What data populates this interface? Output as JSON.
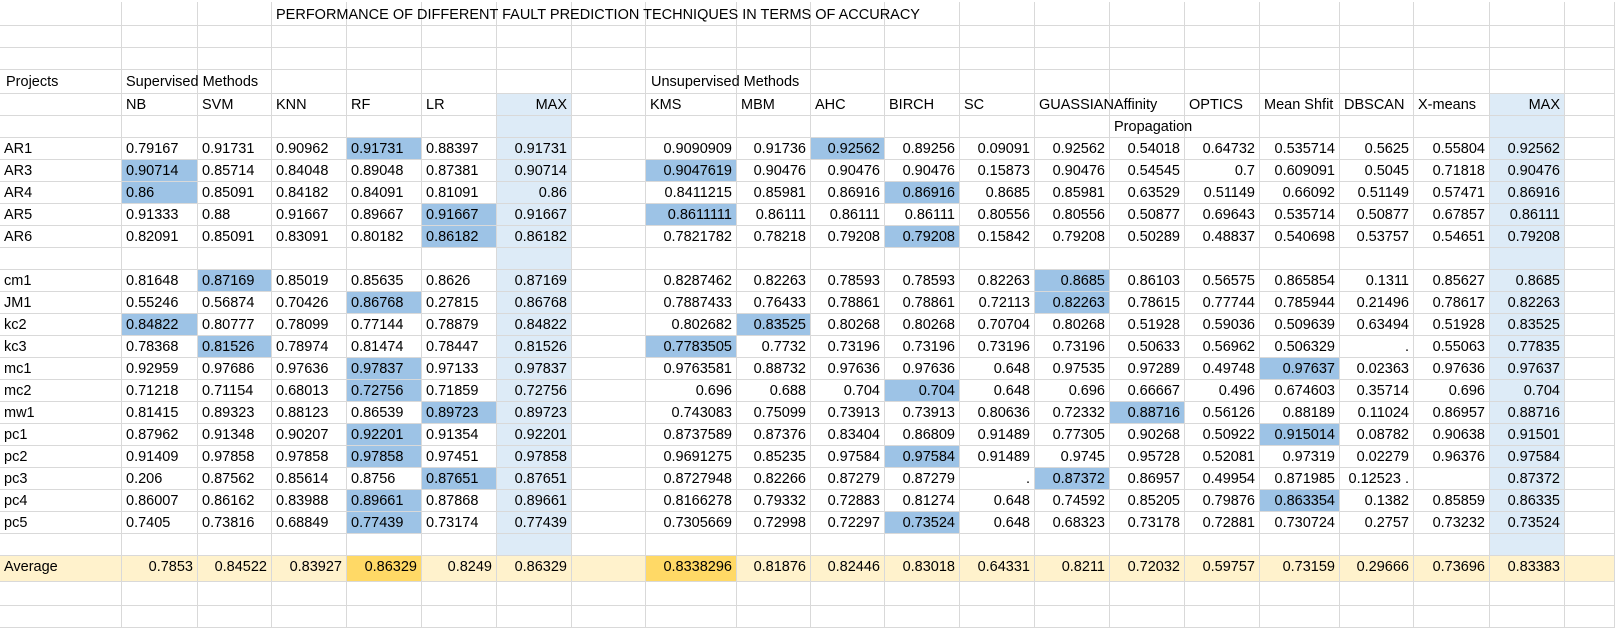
{
  "title": "PERFORMANCE OF DIFFERENT FAULT PREDICTION TECHNIQUES IN TERMS OF ACCURACY",
  "group_labels": {
    "projects": "Projects",
    "supervised": "Supervised Methods",
    "unsupervised": "Unsupervised Methods"
  },
  "columns": [
    "NB",
    "SVM",
    "KNN",
    "RF",
    "LR",
    "MAX",
    "KMS",
    "MBM",
    "AHC",
    "BIRCH",
    "SC",
    "GUASSIAN",
    "Affinity",
    "OPTICS",
    "Mean Shfit",
    "DBSCAN",
    "X-means",
    "MAX"
  ],
  "affinity_second_line": "Propagation",
  "rows": [
    {
      "project": "AR1",
      "values": [
        "0.79167",
        "0.91731",
        "0.90962",
        "0.91731",
        "0.88397",
        "0.91731",
        "0.9090909",
        "0.91736",
        "0.92562",
        "0.89256",
        "0.09091",
        "0.92562",
        "0.54018",
        "0.64732",
        "0.535714",
        "0.5625",
        "0.55804",
        "0.92562"
      ],
      "highlight": [
        3,
        8
      ]
    },
    {
      "project": "AR3",
      "values": [
        "0.90714",
        "0.85714",
        "0.84048",
        "0.89048",
        "0.87381",
        "0.90714",
        "0.9047619",
        "0.90476",
        "0.90476",
        "0.90476",
        "0.15873",
        "0.90476",
        "0.54545",
        "0.7",
        "0.609091",
        "0.5045",
        "0.71818",
        "0.90476"
      ],
      "highlight": [
        0,
        6
      ]
    },
    {
      "project": "AR4",
      "values": [
        "0.86",
        "0.85091",
        "0.84182",
        "0.84091",
        "0.81091",
        "0.86",
        "0.8411215",
        "0.85981",
        "0.86916",
        "0.86916",
        "0.8685",
        "0.85981",
        "0.63529",
        "0.51149",
        "0.66092",
        "0.51149",
        "0.57471",
        "0.86916"
      ],
      "highlight": [
        0,
        9
      ]
    },
    {
      "project": "AR5",
      "values": [
        "0.91333",
        "0.88",
        "0.91667",
        "0.89667",
        "0.91667",
        "0.91667",
        "0.8611111",
        "0.86111",
        "0.86111",
        "0.86111",
        "0.80556",
        "0.80556",
        "0.50877",
        "0.69643",
        "0.535714",
        "0.50877",
        "0.67857",
        "0.86111"
      ],
      "highlight": [
        4,
        6
      ]
    },
    {
      "project": "AR6",
      "values": [
        "0.82091",
        "0.85091",
        "0.83091",
        "0.80182",
        "0.86182",
        "0.86182",
        "0.7821782",
        "0.78218",
        "0.79208",
        "0.79208",
        "0.15842",
        "0.79208",
        "0.50289",
        "0.48837",
        "0.540698",
        "0.53757",
        "0.54651",
        "0.79208"
      ],
      "highlight": [
        4,
        9
      ]
    },
    {
      "project": "cm1",
      "values": [
        "0.81648",
        "0.87169",
        "0.85019",
        "0.85635",
        "0.8626",
        "0.87169",
        "0.8287462",
        "0.82263",
        "0.78593",
        "0.78593",
        "0.82263",
        "0.8685",
        "0.86103",
        "0.56575",
        "0.865854",
        "0.1311",
        "0.85627",
        "0.8685"
      ],
      "highlight": [
        1,
        11
      ]
    },
    {
      "project": "JM1",
      "values": [
        "0.55246",
        "0.56874",
        "0.70426",
        "0.86768",
        "0.27815",
        "0.86768",
        "0.7887433",
        "0.76433",
        "0.78861",
        "0.78861",
        "0.72113",
        "0.82263",
        "0.78615",
        "0.77744",
        "0.785944",
        "0.21496",
        "0.78617",
        "0.82263"
      ],
      "highlight": [
        3,
        11
      ]
    },
    {
      "project": "kc2",
      "values": [
        "0.84822",
        "0.80777",
        "0.78099",
        "0.77144",
        "0.78879",
        "0.84822",
        "0.802682",
        "0.83525",
        "0.80268",
        "0.80268",
        "0.70704",
        "0.80268",
        "0.51928",
        "0.59036",
        "0.509639",
        "0.63494",
        "0.51928",
        "0.83525"
      ],
      "highlight": [
        0,
        7
      ]
    },
    {
      "project": "kc3",
      "values": [
        "0.78368",
        "0.81526",
        "0.78974",
        "0.81474",
        "0.78447",
        "0.81526",
        "0.7783505",
        "0.7732",
        "0.73196",
        "0.73196",
        "0.73196",
        "0.73196",
        "0.50633",
        "0.56962",
        "0.506329",
        ".",
        "0.55063",
        "0.77835"
      ],
      "highlight": [
        1,
        6
      ]
    },
    {
      "project": "mc1",
      "values": [
        "0.92959",
        "0.97686",
        "0.97636",
        "0.97837",
        "0.97133",
        "0.97837",
        "0.9763581",
        "0.88732",
        "0.97636",
        "0.97636",
        "0.648",
        "0.97535",
        "0.97289",
        "0.49748",
        "0.97637",
        "0.02363",
        "0.97636",
        "0.97637"
      ],
      "highlight": [
        3,
        14
      ]
    },
    {
      "project": "mc2",
      "values": [
        "0.71218",
        "0.71154",
        "0.68013",
        "0.72756",
        "0.71859",
        "0.72756",
        "0.696",
        "0.688",
        "0.704",
        "0.704",
        "0.648",
        "0.696",
        "0.66667",
        "0.496",
        "0.674603",
        "0.35714",
        "0.696",
        "0.704"
      ],
      "highlight": [
        3,
        9
      ]
    },
    {
      "project": "mw1",
      "values": [
        "0.81415",
        "0.89323",
        "0.88123",
        "0.86539",
        "0.89723",
        "0.89723",
        "0.743083",
        "0.75099",
        "0.73913",
        "0.73913",
        "0.80636",
        "0.72332",
        "0.88716",
        "0.56126",
        "0.88189",
        "0.11024",
        "0.86957",
        "0.88716"
      ],
      "highlight": [
        4,
        12
      ]
    },
    {
      "project": "pc1",
      "values": [
        "0.87962",
        "0.91348",
        "0.90207",
        "0.92201",
        "0.91354",
        "0.92201",
        "0.8737589",
        "0.87376",
        "0.83404",
        "0.86809",
        "0.91489",
        "0.77305",
        "0.90268",
        "0.50922",
        "0.915014",
        "0.08782",
        "0.90638",
        "0.91501"
      ],
      "highlight": [
        3,
        14
      ]
    },
    {
      "project": "pc2",
      "values": [
        "0.91409",
        "0.97858",
        "0.97858",
        "0.97858",
        "0.97451",
        "0.97858",
        "0.9691275",
        "0.85235",
        "0.97584",
        "0.97584",
        "0.91489",
        "0.9745",
        "0.95728",
        "0.52081",
        "0.97319",
        "0.02279",
        "0.96376",
        "0.97584"
      ],
      "highlight": [
        3,
        9
      ]
    },
    {
      "project": "pc3",
      "values": [
        "0.206",
        "0.87562",
        "0.85614",
        "0.8756",
        "0.87651",
        "0.87651",
        "0.8727948",
        "0.82266",
        "0.87279",
        "0.87279",
        ".",
        "0.87372",
        "0.86957",
        "0.49954",
        "0.871985",
        "0.12523 .",
        "",
        "0.87372"
      ],
      "highlight": [
        4,
        11
      ]
    },
    {
      "project": "pc4",
      "values": [
        "0.86007",
        "0.86162",
        "0.83988",
        "0.89661",
        "0.87868",
        "0.89661",
        "0.8166278",
        "0.79332",
        "0.72883",
        "0.81274",
        "0.648",
        "0.74592",
        "0.85205",
        "0.79876",
        "0.863354",
        "0.1382",
        "0.85859",
        "0.86335"
      ],
      "highlight": [
        3,
        14
      ]
    },
    {
      "project": "pc5",
      "values": [
        "0.7405",
        "0.73816",
        "0.68849",
        "0.77439",
        "0.73174",
        "0.77439",
        "0.7305669",
        "0.72998",
        "0.72297",
        "0.73524",
        "0.648",
        "0.68323",
        "0.73178",
        "0.72881",
        "0.730724",
        "0.2757",
        "0.73232",
        "0.73524"
      ],
      "highlight": [
        3,
        9
      ]
    }
  ],
  "average": {
    "label": "Average",
    "values": [
      "0.7853",
      "0.84522",
      "0.83927",
      "0.86329",
      "0.8249",
      "0.86329",
      "0.8338296",
      "0.81876",
      "0.82446",
      "0.83018",
      "0.64331",
      "0.8211",
      "0.72032",
      "0.59757",
      "0.73159",
      "0.29666",
      "0.73696",
      "0.83383"
    ],
    "highlight": [
      3,
      6
    ]
  },
  "colors": {
    "highlight": "#9dc3e6",
    "max_column": "#ddebf7",
    "average_row": "#fff2cc",
    "average_highlight": "#ffd966",
    "gridline": "#d9d9d9"
  }
}
